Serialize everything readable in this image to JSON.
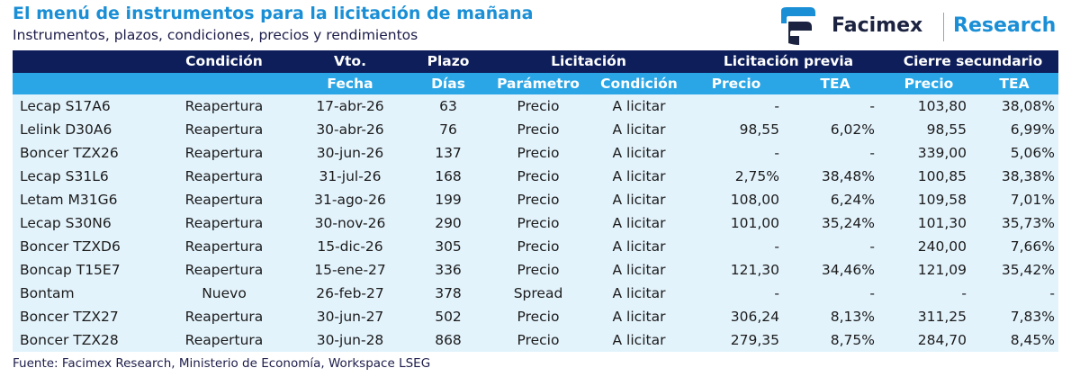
{
  "header": {
    "title": "El menú de instrumentos para la licitación de mañana",
    "subtitle": "Instrumentos, plazos, condiciones, precios y rendimientos"
  },
  "logo": {
    "brand": "Facimex",
    "research": "Research",
    "colors": [
      "#1a8fd6",
      "#1b2340"
    ]
  },
  "colors": {
    "header_dark": "#0d1e5a",
    "header_light": "#2aa6e6",
    "row_bg": "#e3f3fc",
    "title": "#1a8fd6"
  },
  "table": {
    "group_headers": [
      "",
      "Condición",
      "Vto.",
      "Plazo",
      "Licitación",
      "Licitación previa",
      "Cierre secundario"
    ],
    "sub_headers": [
      "",
      "",
      "Fecha",
      "Días",
      "Parámetro",
      "Condición",
      "Precio",
      "TEA",
      "Precio",
      "TEA"
    ],
    "rows": [
      [
        "Lecap S17A6",
        "Reapertura",
        "17-abr-26",
        "63",
        "Precio",
        "A licitar",
        "-",
        "-",
        "103,80",
        "38,08%"
      ],
      [
        "Lelink D30A6",
        "Reapertura",
        "30-abr-26",
        "76",
        "Precio",
        "A licitar",
        "98,55",
        "6,02%",
        "98,55",
        "6,99%"
      ],
      [
        "Boncer TZX26",
        "Reapertura",
        "30-jun-26",
        "137",
        "Precio",
        "A licitar",
        "-",
        "-",
        "339,00",
        "5,06%"
      ],
      [
        "Lecap S31L6",
        "Reapertura",
        "31-jul-26",
        "168",
        "Precio",
        "A licitar",
        "2,75%",
        "38,48%",
        "100,85",
        "38,38%"
      ],
      [
        "Letam M31G6",
        "Reapertura",
        "31-ago-26",
        "199",
        "Precio",
        "A licitar",
        "108,00",
        "6,24%",
        "109,58",
        "7,01%"
      ],
      [
        "Lecap S30N6",
        "Reapertura",
        "30-nov-26",
        "290",
        "Precio",
        "A licitar",
        "101,00",
        "35,24%",
        "101,30",
        "35,73%"
      ],
      [
        "Boncer TZXD6",
        "Reapertura",
        "15-dic-26",
        "305",
        "Precio",
        "A licitar",
        "-",
        "-",
        "240,00",
        "7,66%"
      ],
      [
        "Boncap T15E7",
        "Reapertura",
        "15-ene-27",
        "336",
        "Precio",
        "A licitar",
        "121,30",
        "34,46%",
        "121,09",
        "35,42%"
      ],
      [
        "Bontam",
        "Nuevo",
        "26-feb-27",
        "378",
        "Spread",
        "A licitar",
        "-",
        "-",
        "-",
        "-"
      ],
      [
        "Boncer TZX27",
        "Reapertura",
        "30-jun-27",
        "502",
        "Precio",
        "A licitar",
        "306,24",
        "8,13%",
        "311,25",
        "7,83%"
      ],
      [
        "Boncer TZX28",
        "Reapertura",
        "30-jun-28",
        "868",
        "Precio",
        "A licitar",
        "279,35",
        "8,75%",
        "284,70",
        "8,45%"
      ]
    ]
  },
  "source": "Fuente: Facimex Research, Ministerio de Economía, Workspace LSEG"
}
